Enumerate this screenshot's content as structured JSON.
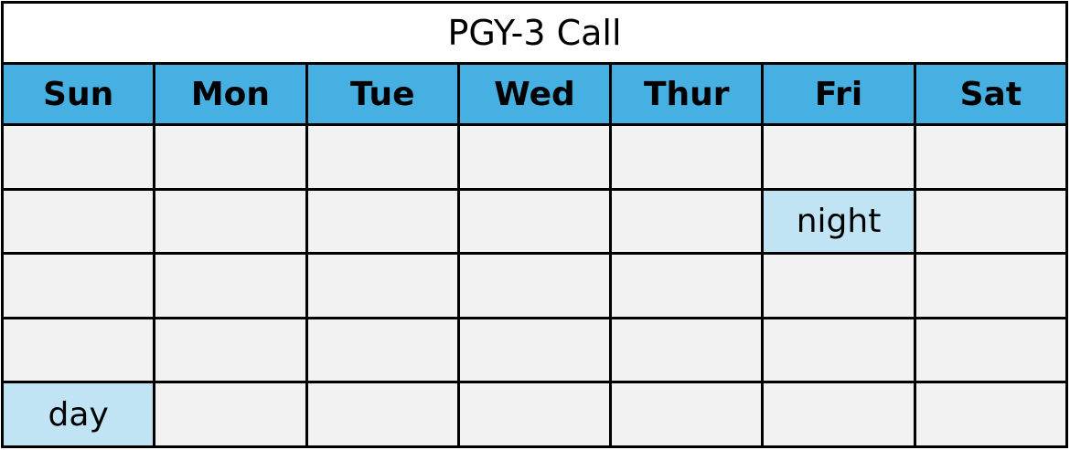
{
  "title": "PGY-3 Call",
  "days": [
    "Sun",
    "Mon",
    "Tue",
    "Wed",
    "Thur",
    "Fri",
    "Sat"
  ],
  "colors": {
    "header": "#47B0E2",
    "cell": "#F2F2F2",
    "highlight": "#C1E4F5"
  },
  "weeks": [
    [
      "",
      "",
      "",
      "",
      "",
      "",
      ""
    ],
    [
      "",
      "",
      "",
      "",
      "",
      "night",
      ""
    ],
    [
      "",
      "",
      "",
      "",
      "",
      "",
      ""
    ],
    [
      "",
      "",
      "",
      "",
      "",
      "",
      ""
    ],
    [
      "day",
      "",
      "",
      "",
      "",
      "",
      ""
    ]
  ]
}
